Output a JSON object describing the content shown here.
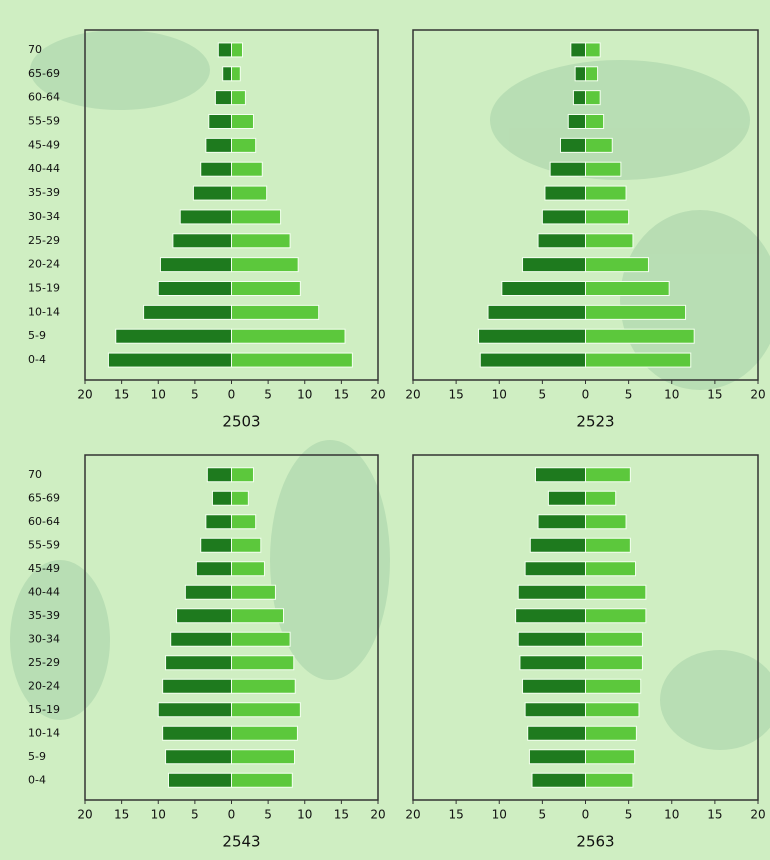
{
  "chart_data": [
    {
      "type": "pyramid",
      "title": "2503",
      "categories": [
        "70",
        "65-69",
        "60-64",
        "55-59",
        "45-49",
        "40-44",
        "35-39",
        "30-34",
        "25-29",
        "20-24",
        "15-19",
        "10-14",
        "5-9",
        "0-4"
      ],
      "series": [
        {
          "color": "#1e7a1e",
          "values": [
            -1.8,
            -1.2,
            -2.2,
            -3.1,
            -3.5,
            -4.2,
            -5.2,
            -7,
            -8,
            -9.7,
            -10,
            -12,
            -15.8,
            -16.8
          ]
        },
        {
          "color": "#5cc83c",
          "values": [
            1.5,
            1.2,
            1.9,
            3,
            3.3,
            4.2,
            4.8,
            6.7,
            8,
            9.1,
            9.4,
            11.9,
            15.5,
            16.5
          ]
        }
      ],
      "xlim": [
        -20,
        20
      ],
      "xticks": [
        {
          "value": -20,
          "label": "20"
        },
        {
          "value": -15,
          "label": "15"
        },
        {
          "value": -10,
          "label": "10"
        },
        {
          "value": -5,
          "label": "5"
        },
        0,
        5,
        10,
        15,
        20
      ]
    },
    {
      "type": "pyramid",
      "title": "2523",
      "series": [
        {
          "color": "#1e7a1e",
          "values": [
            -1.7,
            -1.2,
            -1.4,
            -2,
            -2.9,
            -4.1,
            -4.7,
            -5,
            -5.5,
            -7.3,
            -9.7,
            -11.3,
            -12.4,
            -12.2
          ]
        },
        {
          "color": "#5cc83c",
          "values": [
            1.7,
            1.4,
            1.7,
            2.1,
            3.1,
            4.1,
            4.7,
            5,
            5.5,
            7.3,
            9.7,
            11.6,
            12.6,
            12.2
          ]
        }
      ],
      "xlim": [
        -20,
        20
      ],
      "xticks": [
        {
          "value": -20,
          "label": "20"
        },
        {
          "value": -15,
          "label": "15"
        },
        {
          "value": -10,
          "label": "10"
        },
        {
          "value": -5,
          "label": "5"
        },
        0,
        5,
        10,
        15,
        20
      ]
    },
    {
      "type": "pyramid",
      "title": "2543",
      "categories": [
        "70",
        "65-69",
        "60-64",
        "55-59",
        "45-49",
        "40-44",
        "35-39",
        "30-34",
        "25-29",
        "20-24",
        "15-19",
        "10-14",
        "5-9",
        "0-4"
      ],
      "series": [
        {
          "color": "#1e7a1e",
          "values": [
            -3.3,
            -2.6,
            -3.5,
            -4.2,
            -4.8,
            -6.3,
            -7.5,
            -8.3,
            -9,
            -9.4,
            -10,
            -9.4,
            -9,
            -8.6
          ]
        },
        {
          "color": "#5cc83c",
          "values": [
            3,
            2.3,
            3.3,
            4,
            4.5,
            6,
            7.1,
            8,
            8.5,
            8.7,
            9.4,
            9,
            8.6,
            8.3
          ]
        }
      ],
      "xlim": [
        -20,
        20
      ],
      "xticks": [
        {
          "value": -20,
          "label": "20"
        },
        {
          "value": -15,
          "label": "15"
        },
        {
          "value": -10,
          "label": "10"
        },
        {
          "value": -5,
          "label": "5"
        },
        0,
        5,
        10,
        15,
        20
      ]
    },
    {
      "type": "pyramid",
      "title": "2563",
      "series": [
        {
          "color": "#1e7a1e",
          "values": [
            -5.8,
            -4.3,
            -5.5,
            -6.4,
            -7,
            -7.8,
            -8.1,
            -7.8,
            -7.6,
            -7.3,
            -7,
            -6.7,
            -6.5,
            -6.2
          ]
        },
        {
          "color": "#5cc83c",
          "values": [
            5.2,
            3.5,
            4.7,
            5.2,
            5.8,
            7,
            7,
            6.6,
            6.6,
            6.4,
            6.2,
            5.9,
            5.7,
            5.5
          ]
        }
      ],
      "xlim": [
        -20,
        20
      ],
      "xticks": [
        {
          "value": -20,
          "label": "20"
        },
        {
          "value": -15,
          "label": "15"
        },
        {
          "value": -10,
          "label": "10"
        },
        {
          "value": -5,
          "label": "5"
        },
        0,
        5,
        10,
        15,
        20
      ]
    }
  ]
}
